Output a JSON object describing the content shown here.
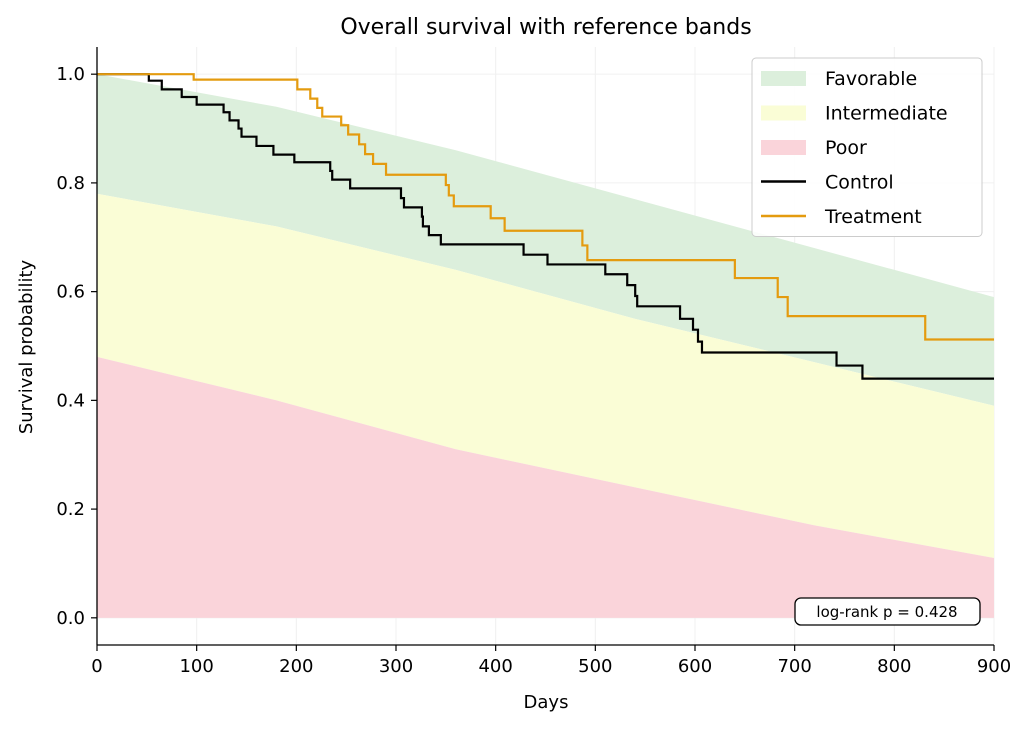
{
  "chart_data": {
    "type": "line",
    "title": "Overall survival with reference bands",
    "xlabel": "Days",
    "ylabel": "Survival probability",
    "xlim": [
      0,
      900
    ],
    "ylim": [
      -0.05,
      1.05
    ],
    "xticks": [
      0,
      100,
      200,
      300,
      400,
      500,
      600,
      700,
      800,
      900
    ],
    "yticks": [
      0.0,
      0.2,
      0.4,
      0.6,
      0.8,
      1.0
    ],
    "ytick_labels": [
      "0.0",
      "0.2",
      "0.4",
      "0.6",
      "0.8",
      "1.0"
    ],
    "grid": true,
    "legend_position": "top-right",
    "annotation": "log-rank p = 0.428",
    "bands": [
      {
        "name": "Favorable",
        "color": "#dcefdc",
        "lower": [
          [
            0,
            0.78
          ],
          [
            180,
            0.72
          ],
          [
            360,
            0.64
          ],
          [
            540,
            0.55
          ],
          [
            720,
            0.47
          ],
          [
            900,
            0.39
          ]
        ],
        "upper": [
          [
            0,
            1.0
          ],
          [
            180,
            0.94
          ],
          [
            360,
            0.86
          ],
          [
            540,
            0.77
          ],
          [
            720,
            0.68
          ],
          [
            900,
            0.59
          ]
        ]
      },
      {
        "name": "Intermediate",
        "color": "#fafdd6",
        "lower": [
          [
            0,
            0.48
          ],
          [
            180,
            0.4
          ],
          [
            360,
            0.31
          ],
          [
            540,
            0.24
          ],
          [
            720,
            0.17
          ],
          [
            900,
            0.11
          ]
        ],
        "upper": [
          [
            0,
            0.78
          ],
          [
            180,
            0.72
          ],
          [
            360,
            0.64
          ],
          [
            540,
            0.55
          ],
          [
            720,
            0.47
          ],
          [
            900,
            0.39
          ]
        ]
      },
      {
        "name": "Poor",
        "color": "#fad4da",
        "lower": [
          [
            0,
            0.0
          ],
          [
            900,
            0.0
          ]
        ],
        "upper": [
          [
            0,
            0.48
          ],
          [
            180,
            0.4
          ],
          [
            360,
            0.31
          ],
          [
            540,
            0.24
          ],
          [
            720,
            0.17
          ],
          [
            900,
            0.11
          ]
        ]
      }
    ],
    "series": [
      {
        "name": "Control",
        "color": "#000000",
        "steps": [
          [
            0,
            1.0
          ],
          [
            52,
            0.988
          ],
          [
            65,
            0.972
          ],
          [
            85,
            0.958
          ],
          [
            100,
            0.944
          ],
          [
            127,
            0.93
          ],
          [
            133,
            0.915
          ],
          [
            142,
            0.9
          ],
          [
            145,
            0.885
          ],
          [
            160,
            0.868
          ],
          [
            177,
            0.852
          ],
          [
            198,
            0.838
          ],
          [
            234,
            0.822
          ],
          [
            236,
            0.806
          ],
          [
            254,
            0.79
          ],
          [
            305,
            0.772
          ],
          [
            308,
            0.755
          ],
          [
            326,
            0.738
          ],
          [
            327,
            0.72
          ],
          [
            333,
            0.704
          ],
          [
            345,
            0.687
          ],
          [
            428,
            0.668
          ],
          [
            452,
            0.65
          ],
          [
            510,
            0.632
          ],
          [
            532,
            0.612
          ],
          [
            540,
            0.592
          ],
          [
            542,
            0.573
          ],
          [
            585,
            0.55
          ],
          [
            598,
            0.53
          ],
          [
            603,
            0.508
          ],
          [
            607,
            0.488
          ],
          [
            742,
            0.464
          ],
          [
            768,
            0.44
          ],
          [
            900,
            0.44
          ]
        ]
      },
      {
        "name": "Treatment",
        "color": "#e49b0f",
        "steps": [
          [
            0,
            1.0
          ],
          [
            97,
            0.99
          ],
          [
            201,
            0.972
          ],
          [
            214,
            0.955
          ],
          [
            221,
            0.938
          ],
          [
            226,
            0.922
          ],
          [
            245,
            0.906
          ],
          [
            252,
            0.889
          ],
          [
            263,
            0.871
          ],
          [
            269,
            0.853
          ],
          [
            277,
            0.835
          ],
          [
            290,
            0.815
          ],
          [
            350,
            0.796
          ],
          [
            353,
            0.777
          ],
          [
            358,
            0.757
          ],
          [
            395,
            0.735
          ],
          [
            409,
            0.712
          ],
          [
            487,
            0.685
          ],
          [
            492,
            0.658
          ],
          [
            640,
            0.625
          ],
          [
            683,
            0.59
          ],
          [
            693,
            0.555
          ],
          [
            831,
            0.512
          ],
          [
            900,
            0.512
          ]
        ]
      }
    ]
  }
}
